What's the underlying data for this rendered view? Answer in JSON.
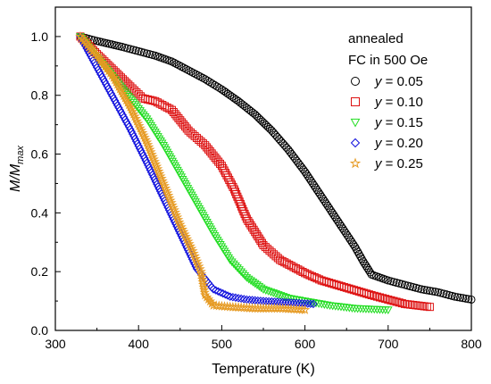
{
  "chart_data": {
    "type": "scatter",
    "legend_title": [
      "annealed",
      "FC in 500 Oe"
    ],
    "legend_placement": "top-right",
    "xlabel": "Temperature (K)",
    "ylabel_main": "M/M",
    "ylabel_sub": "max",
    "xlim": [
      300,
      800
    ],
    "ylim": [
      0.0,
      1.1
    ],
    "x_ticks": [
      300,
      400,
      500,
      600,
      700,
      800
    ],
    "x_tick_labels": [
      "300",
      "400",
      "500",
      "600",
      "700",
      "800"
    ],
    "y_ticks": [
      0.0,
      0.2,
      0.4,
      0.6,
      0.8,
      1.0
    ],
    "y_tick_labels": [
      "0.0",
      "0.2",
      "0.4",
      "0.6",
      "0.8",
      "1.0"
    ],
    "grid": false,
    "series": [
      {
        "name": "y = 0.05",
        "var": "y",
        "value": "= 0.05",
        "marker": "circle",
        "color": "#000000",
        "points": [
          [
            330,
            1.0
          ],
          [
            350,
            0.985
          ],
          [
            380,
            0.965
          ],
          [
            400,
            0.95
          ],
          [
            420,
            0.935
          ],
          [
            440,
            0.915
          ],
          [
            460,
            0.885
          ],
          [
            480,
            0.855
          ],
          [
            500,
            0.82
          ],
          [
            520,
            0.78
          ],
          [
            540,
            0.735
          ],
          [
            560,
            0.68
          ],
          [
            580,
            0.615
          ],
          [
            600,
            0.54
          ],
          [
            620,
            0.455
          ],
          [
            640,
            0.37
          ],
          [
            660,
            0.285
          ],
          [
            670,
            0.235
          ],
          [
            680,
            0.19
          ],
          [
            700,
            0.17
          ],
          [
            720,
            0.155
          ],
          [
            740,
            0.14
          ],
          [
            760,
            0.13
          ],
          [
            780,
            0.115
          ],
          [
            800,
            0.105
          ]
        ]
      },
      {
        "name": "y = 0.10",
        "var": "y",
        "value": "= 0.10",
        "marker": "square",
        "color": "#dd1111",
        "points": [
          [
            330,
            1.0
          ],
          [
            350,
            0.94
          ],
          [
            370,
            0.885
          ],
          [
            390,
            0.83
          ],
          [
            405,
            0.79
          ],
          [
            420,
            0.78
          ],
          [
            440,
            0.75
          ],
          [
            460,
            0.68
          ],
          [
            480,
            0.63
          ],
          [
            500,
            0.56
          ],
          [
            515,
            0.48
          ],
          [
            530,
            0.38
          ],
          [
            550,
            0.29
          ],
          [
            570,
            0.24
          ],
          [
            600,
            0.195
          ],
          [
            620,
            0.17
          ],
          [
            650,
            0.145
          ],
          [
            680,
            0.12
          ],
          [
            700,
            0.105
          ],
          [
            720,
            0.09
          ],
          [
            750,
            0.08
          ]
        ]
      },
      {
        "name": "y = 0.15",
        "var": "y",
        "value": "= 0.15",
        "marker": "triangle-down",
        "color": "#22dd22",
        "points": [
          [
            330,
            1.0
          ],
          [
            350,
            0.93
          ],
          [
            370,
            0.86
          ],
          [
            390,
            0.79
          ],
          [
            410,
            0.72
          ],
          [
            430,
            0.63
          ],
          [
            450,
            0.53
          ],
          [
            470,
            0.43
          ],
          [
            490,
            0.33
          ],
          [
            510,
            0.24
          ],
          [
            530,
            0.18
          ],
          [
            550,
            0.14
          ],
          [
            580,
            0.11
          ],
          [
            600,
            0.1
          ],
          [
            630,
            0.085
          ],
          [
            660,
            0.075
          ],
          [
            700,
            0.07
          ]
        ]
      },
      {
        "name": "y = 0.20",
        "var": "y",
        "value": "= 0.20",
        "marker": "diamond",
        "color": "#1111dd",
        "points": [
          [
            330,
            1.0
          ],
          [
            350,
            0.895
          ],
          [
            370,
            0.79
          ],
          [
            390,
            0.685
          ],
          [
            410,
            0.57
          ],
          [
            430,
            0.45
          ],
          [
            450,
            0.33
          ],
          [
            470,
            0.21
          ],
          [
            490,
            0.14
          ],
          [
            510,
            0.115
          ],
          [
            530,
            0.105
          ],
          [
            550,
            0.1
          ],
          [
            580,
            0.095
          ],
          [
            610,
            0.09
          ]
        ]
      },
      {
        "name": "y = 0.25",
        "var": "y",
        "value": "= 0.25",
        "marker": "star",
        "color": "#e69a22",
        "points": [
          [
            330,
            1.0
          ],
          [
            350,
            0.935
          ],
          [
            370,
            0.86
          ],
          [
            390,
            0.76
          ],
          [
            410,
            0.64
          ],
          [
            430,
            0.5
          ],
          [
            450,
            0.36
          ],
          [
            465,
            0.27
          ],
          [
            475,
            0.2
          ],
          [
            480,
            0.12
          ],
          [
            490,
            0.085
          ],
          [
            510,
            0.08
          ],
          [
            540,
            0.075
          ],
          [
            570,
            0.075
          ],
          [
            600,
            0.07
          ]
        ]
      }
    ]
  }
}
